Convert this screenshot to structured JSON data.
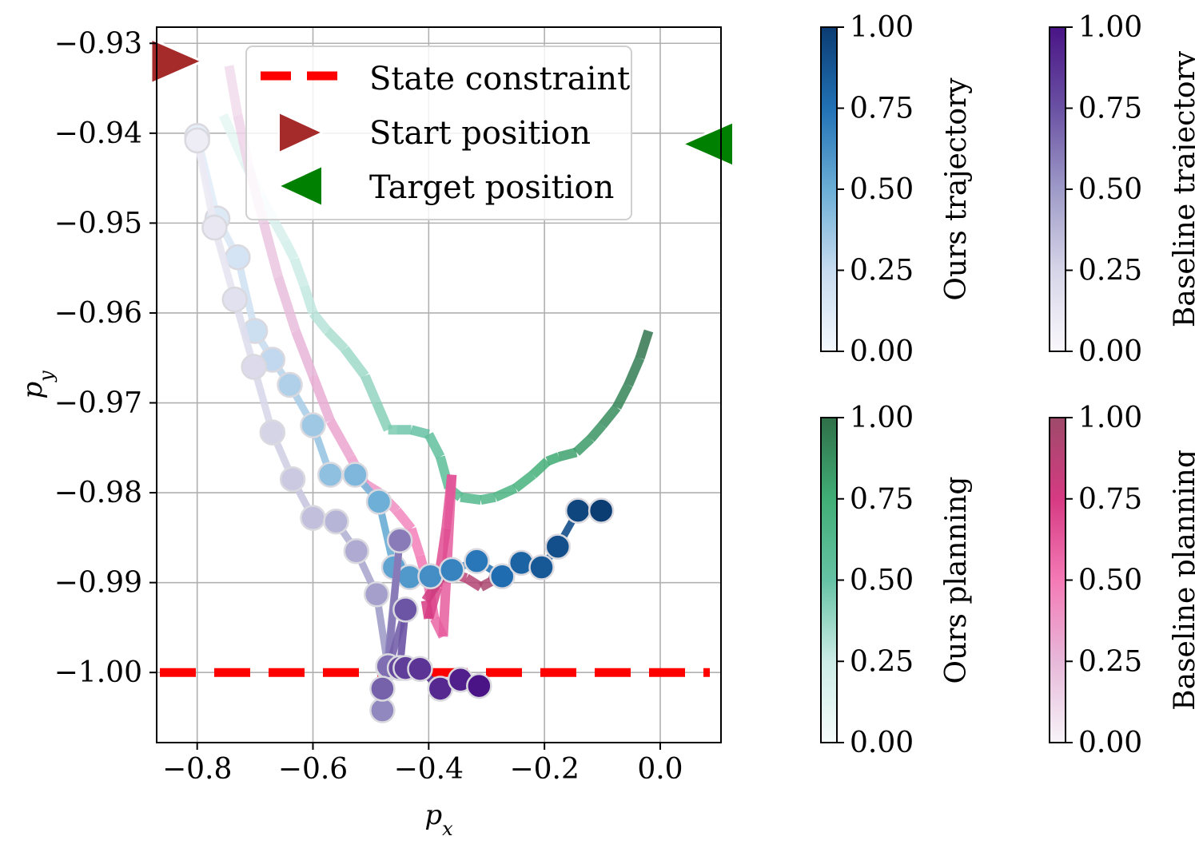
{
  "chart_data": {
    "type": "line",
    "xlabel": "p_x",
    "ylabel": "p_y",
    "xlim": [
      -0.87,
      0.105
    ],
    "ylim": [
      -1.0078,
      -0.9282
    ],
    "xticks": [
      -0.8,
      -0.6,
      -0.4,
      -0.2,
      0.0
    ],
    "xtick_labels": [
      "−0.8",
      "−0.6",
      "−0.4",
      "−0.2",
      "0.0"
    ],
    "yticks": [
      -0.93,
      -0.94,
      -0.95,
      -0.96,
      -0.97,
      -0.98,
      -0.99,
      -1.0
    ],
    "ytick_labels": [
      "−0.93",
      "−0.94",
      "−0.95",
      "−0.96",
      "−0.97",
      "−0.98",
      "−0.99",
      "−1.00"
    ],
    "grid": true,
    "legend": {
      "position": "upper-center",
      "entries": [
        "State constraint",
        "Start position",
        "Target position"
      ]
    },
    "state_constraint": {
      "y": -1.0,
      "color": "#ff0000"
    },
    "start_position": {
      "x": -0.83,
      "y": -0.932,
      "color": "#a52a2a"
    },
    "target_position": {
      "x": 0.085,
      "y": -0.9412,
      "color": "#008000"
    },
    "series": [
      {
        "name": "Ours planning",
        "colormap": "greens",
        "x": [
          -0.755,
          -0.72,
          -0.69,
          -0.665,
          -0.648,
          -0.632,
          -0.615,
          -0.6,
          -0.575,
          -0.545,
          -0.51,
          -0.49,
          -0.47,
          -0.455,
          -0.43,
          -0.4,
          -0.38,
          -0.365,
          -0.345,
          -0.31,
          -0.285,
          -0.25,
          -0.22,
          -0.195,
          -0.175,
          -0.145,
          -0.12,
          -0.1,
          -0.075,
          -0.055,
          -0.035,
          -0.02
        ],
        "y": [
          -0.938,
          -0.943,
          -0.947,
          -0.95,
          -0.952,
          -0.954,
          -0.957,
          -0.96,
          -0.962,
          -0.964,
          -0.967,
          -0.97,
          -0.973,
          -0.973,
          -0.973,
          -0.9735,
          -0.976,
          -0.9795,
          -0.9805,
          -0.9808,
          -0.9805,
          -0.9795,
          -0.978,
          -0.9765,
          -0.976,
          -0.9755,
          -0.974,
          -0.9725,
          -0.9705,
          -0.968,
          -0.965,
          -0.962
        ]
      },
      {
        "name": "Baseline planning",
        "colormap": "pinks",
        "x": [
          -0.745,
          -0.73,
          -0.71,
          -0.685,
          -0.66,
          -0.63,
          -0.6,
          -0.57,
          -0.535,
          -0.51,
          -0.485,
          -0.455,
          -0.43,
          -0.415,
          -0.4,
          -0.39,
          -0.375,
          -0.36,
          -0.37,
          -0.385,
          -0.4,
          -0.405,
          -0.395,
          -0.38,
          -0.36,
          -0.335,
          -0.31,
          -0.29,
          -0.285
        ],
        "y": [
          -0.9325,
          -0.938,
          -0.944,
          -0.95,
          -0.956,
          -0.962,
          -0.967,
          -0.972,
          -0.976,
          -0.979,
          -0.98,
          -0.982,
          -0.984,
          -0.987,
          -0.9905,
          -0.994,
          -0.996,
          -0.978,
          -0.984,
          -0.9905,
          -0.994,
          -0.992,
          -0.991,
          -0.9895,
          -0.989,
          -0.9895,
          -0.9905,
          -0.9898,
          -0.9888
        ]
      },
      {
        "name": "Ours trajectory",
        "colormap": "blues",
        "x": [
          -0.8,
          -0.765,
          -0.73,
          -0.7,
          -0.67,
          -0.64,
          -0.6,
          -0.57,
          -0.527,
          -0.486,
          -0.46,
          -0.433,
          -0.397,
          -0.36,
          -0.317,
          -0.273,
          -0.24,
          -0.205,
          -0.177,
          -0.142,
          -0.102
        ],
        "y": [
          -0.9403,
          -0.9495,
          -0.9538,
          -0.962,
          -0.9652,
          -0.968,
          -0.9725,
          -0.978,
          -0.978,
          -0.981,
          -0.9883,
          -0.9894,
          -0.9893,
          -0.9886,
          -0.9876,
          -0.9893,
          -0.9878,
          -0.9883,
          -0.986,
          -0.982,
          -0.982
        ]
      },
      {
        "name": "Baseline trajectory",
        "colormap": "purples",
        "x": [
          -0.8,
          -0.77,
          -0.735,
          -0.702,
          -0.67,
          -0.635,
          -0.6,
          -0.56,
          -0.525,
          -0.49,
          -0.47,
          -0.48,
          -0.45,
          -0.47,
          -0.48,
          -0.44,
          -0.45,
          -0.44,
          -0.415,
          -0.38,
          -0.345,
          -0.313
        ],
        "y": [
          -0.9408,
          -0.9505,
          -0.9585,
          -0.966,
          -0.9733,
          -0.9785,
          -0.9828,
          -0.9832,
          -0.9865,
          -0.9913,
          -0.9995,
          -1.0042,
          -0.9853,
          -0.9993,
          -1.0018,
          -0.993,
          -0.9995,
          -0.9995,
          -0.9996,
          -1.0018,
          -1.0008,
          -1.0015
        ]
      }
    ],
    "colorbars": [
      {
        "label": "Ours trajectory",
        "min": 0.0,
        "max": 1.0,
        "ticks": [
          0.0,
          0.25,
          0.5,
          0.75,
          1.0
        ],
        "tick_labels": [
          "0.00",
          "0.25",
          "0.50",
          "0.75",
          "1.00"
        ],
        "colors": [
          "#f5f9fe",
          "#c6dbef",
          "#6baed6",
          "#2171b5",
          "#0b3c72"
        ]
      },
      {
        "label": "Baseline trajectory",
        "min": 0.0,
        "max": 1.0,
        "ticks": [
          0.0,
          0.25,
          0.5,
          0.75,
          1.0
        ],
        "tick_labels": [
          "0.00",
          "0.25",
          "0.50",
          "0.75",
          "1.00"
        ],
        "colors": [
          "#faf8fc",
          "#d6d5e8",
          "#9e9ac8",
          "#6a51a3",
          "#4a1486"
        ]
      },
      {
        "label": "Ours planning",
        "min": 0.0,
        "max": 1.0,
        "ticks": [
          0.0,
          0.25,
          0.5,
          0.75,
          1.0
        ],
        "tick_labels": [
          "0.00",
          "0.25",
          "0.50",
          "0.75",
          "1.00"
        ],
        "colors": [
          "#f6fcfb",
          "#ccece6",
          "#66c2a4",
          "#41ae76",
          "#2f6f48"
        ]
      },
      {
        "label": "Baseline planning",
        "min": 0.0,
        "max": 1.0,
        "ticks": [
          0.0,
          0.25,
          0.5,
          0.75,
          1.0
        ],
        "tick_labels": [
          "0.00",
          "0.25",
          "0.50",
          "0.75",
          "1.00"
        ],
        "colors": [
          "#f7f4f9",
          "#e7b8d9",
          "#f47ab6",
          "#d63a82",
          "#9e4a6a"
        ]
      }
    ]
  }
}
